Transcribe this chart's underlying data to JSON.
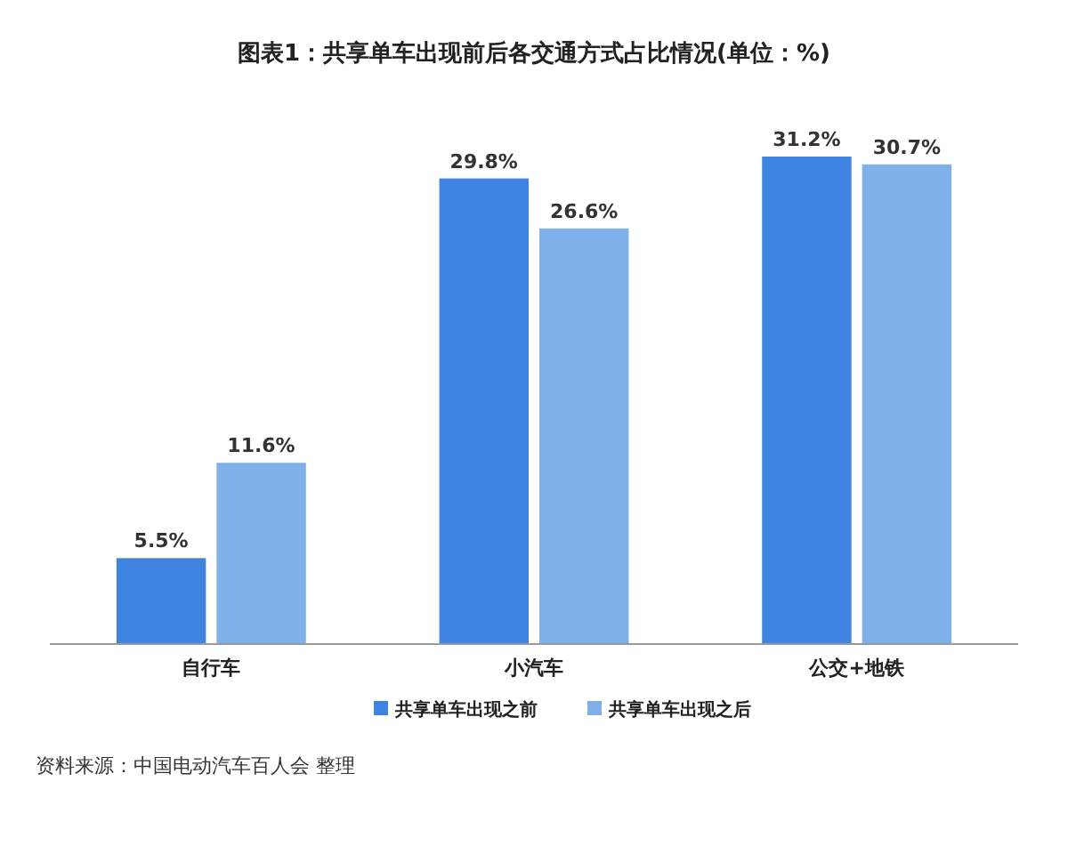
{
  "chart_data": {
    "type": "bar",
    "title": "图表1：共享单车出现前后各交通方式占比情况(单位：%)",
    "categories": [
      "自行车",
      "小汽车",
      "公交+地铁"
    ],
    "series": [
      {
        "name": "共享单车出现之前",
        "color": "#3f84e0",
        "values": [
          5.5,
          29.8,
          31.2
        ],
        "value_labels": [
          "5.5%",
          "29.8%",
          "31.2%"
        ]
      },
      {
        "name": "共享单车出现之后",
        "color": "#7fb0ea",
        "values": [
          11.6,
          26.6,
          30.7
        ],
        "value_labels": [
          "11.6%",
          "26.6%",
          "30.7%"
        ]
      }
    ],
    "legend": "bottom",
    "annotations": [
      "资料来源：中国电动汽车百人会 整理"
    ]
  }
}
